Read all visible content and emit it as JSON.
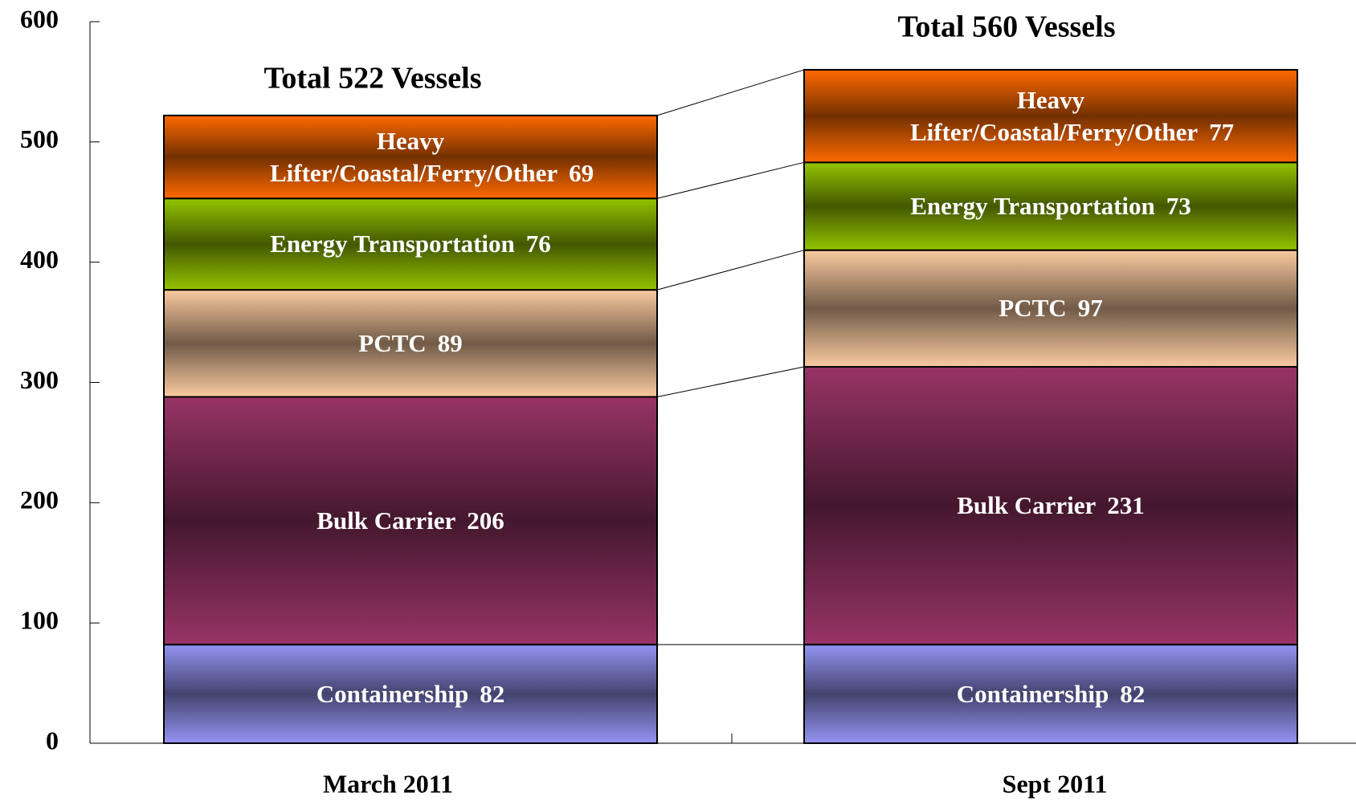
{
  "chart_data": {
    "type": "stacked_bar",
    "annotations": [
      "Total 522 Vessels",
      "Total 560 Vessels"
    ],
    "categories": [
      "March 2011",
      "Sept 2011"
    ],
    "series": [
      {
        "name": "Containership",
        "color": "#9494f4",
        "values": [
          82,
          82
        ]
      },
      {
        "name": "Bulk Carrier",
        "color": "#983466",
        "values": [
          206,
          231
        ]
      },
      {
        "name": "PCTC",
        "color": "#facaa0",
        "values": [
          89,
          97
        ]
      },
      {
        "name": "Energy Transportation",
        "color": "#94c400",
        "values": [
          76,
          73
        ]
      },
      {
        "name": "Heavy Lifter/Coastal/Ferry/Other",
        "color": "#ff6a00",
        "values": [
          69,
          77
        ]
      }
    ],
    "ylim": [
      0,
      600
    ],
    "yticks": [
      0,
      100,
      200,
      300,
      400,
      500,
      600
    ],
    "grid": false
  }
}
